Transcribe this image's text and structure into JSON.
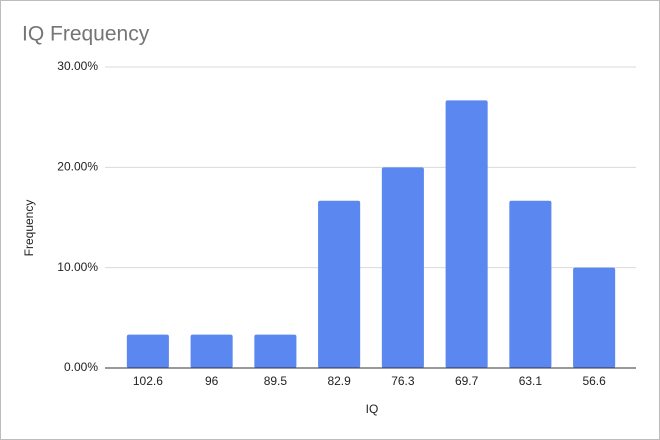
{
  "chart_data": {
    "type": "bar",
    "title": "IQ Frequency",
    "x_label": "IQ",
    "y_label": "Frequency",
    "categories": [
      "102.6",
      "96",
      "89.5",
      "82.9",
      "76.3",
      "69.7",
      "63.1",
      "56.6"
    ],
    "values": [
      3.33,
      3.33,
      3.33,
      16.67,
      20,
      26.67,
      16.67,
      10
    ],
    "color": "#5b87f0",
    "ylim": [
      0,
      30
    ],
    "yticks": [
      {
        "value": 0,
        "label": "0.00%"
      },
      {
        "value": 10,
        "label": "10.00%"
      },
      {
        "value": 20,
        "label": "20.00%"
      },
      {
        "value": 30,
        "label": "30.00%"
      }
    ],
    "grid": true
  }
}
